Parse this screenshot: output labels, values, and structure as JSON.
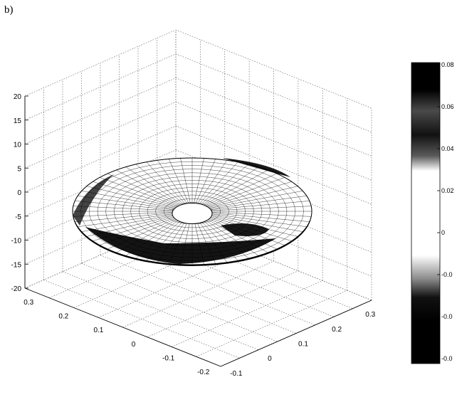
{
  "panel_label": "b)",
  "chart_data": {
    "type": "surface",
    "title": "",
    "xlabel": "",
    "ylabel": "",
    "zlabel": "",
    "grid": true,
    "colormap": "grayscale (black at extremes, white near 0)",
    "z_axis": {
      "range": [
        -20,
        20
      ],
      "ticks": [
        "20",
        "15",
        "10",
        "5",
        "0",
        "-5",
        "-10",
        "-15",
        "-20"
      ]
    },
    "x_axis": {
      "range": [
        -0.2,
        0.3
      ],
      "ticks": [
        "0.3",
        "0.2",
        "0.1",
        "0",
        "-0.1",
        "-0.2"
      ]
    },
    "y_axis": {
      "range": [
        -0.1,
        0.3
      ],
      "ticks": [
        "-0.1",
        "0",
        "0.1",
        "0.2",
        "0.3"
      ]
    },
    "colorbar": {
      "range": [
        -0.08,
        0.08
      ],
      "ticks": [
        "0.08",
        "0.06",
        "0.04",
        "0.02",
        "0",
        "-0.0",
        "-0.0",
        "-0.0"
      ]
    },
    "surface": {
      "shape": "annulus",
      "description_values": {
        "inner_radius": 0.05,
        "outer_radius": 0.3,
        "z_value": 0
      }
    }
  }
}
